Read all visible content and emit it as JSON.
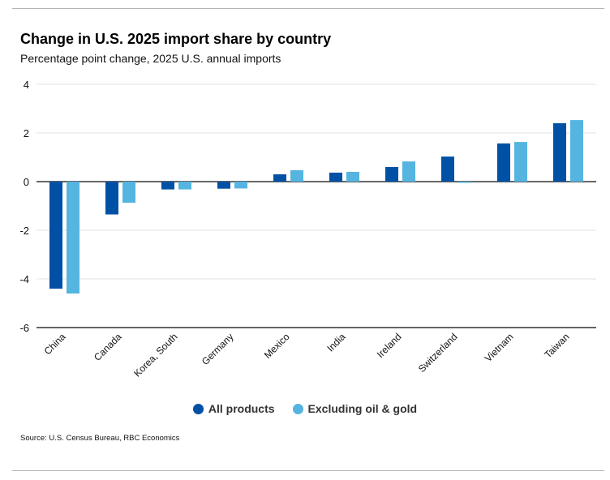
{
  "header": {
    "title": "Change in U.S. 2025 import share by country",
    "subtitle": "Percentage point change, 2025 U.S. annual imports"
  },
  "footer": {
    "source": "Source: U.S. Census Bureau, RBC Economics"
  },
  "colors": {
    "all_products": "#0051a5",
    "excluding_oil_gold": "#55b4e0",
    "gridline": "#e2e2e2",
    "axis": "#333333"
  },
  "chart_data": {
    "type": "bar",
    "title": "Change in U.S. 2025 import share by country",
    "subtitle": "Percentage point change, 2025 U.S. annual imports",
    "xlabel": "",
    "ylabel": "",
    "ylim": [
      -6,
      4
    ],
    "yticks": [
      4,
      2,
      0,
      -2,
      -4,
      -6
    ],
    "grid": true,
    "legend_position": "bottom-center",
    "categories": [
      "China",
      "Canada",
      "Korea, South",
      "Germany",
      "Mexico",
      "India",
      "Ireland",
      "Switzerland",
      "Vietnam",
      "Taiwan"
    ],
    "series": [
      {
        "name": "All products",
        "color": "#0051a5",
        "values": [
          -4.4,
          -1.35,
          -0.32,
          -0.29,
          0.3,
          0.37,
          0.6,
          1.03,
          1.57,
          2.4
        ]
      },
      {
        "name": "Excluding oil & gold",
        "color": "#55b4e0",
        "values": [
          -4.6,
          -0.87,
          -0.32,
          -0.28,
          0.47,
          0.4,
          0.83,
          -0.05,
          1.63,
          2.53
        ]
      }
    ]
  }
}
